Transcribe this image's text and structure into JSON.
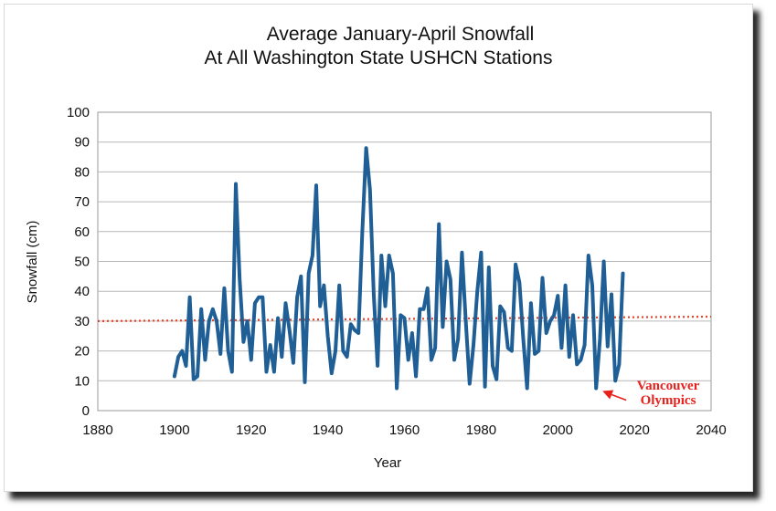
{
  "chart_data": {
    "type": "line",
    "title_line1": "Average January-April Snowfall",
    "title_line2": "At All Washington State USHCN Stations",
    "xlabel": "Year",
    "ylabel": "Snowfall (cm)",
    "xlim": [
      1880,
      2040
    ],
    "ylim": [
      0,
      100
    ],
    "xticks": [
      1880,
      1900,
      1920,
      1940,
      1960,
      1980,
      2000,
      2020,
      2040
    ],
    "yticks": [
      0,
      10,
      20,
      30,
      40,
      50,
      60,
      70,
      80,
      90,
      100
    ],
    "grid": true,
    "series_color": "#1f5f96",
    "series": [
      {
        "x": [
          1900,
          1901,
          1902,
          1903,
          1904,
          1905,
          1906,
          1907,
          1908,
          1909,
          1910,
          1911,
          1912,
          1913,
          1914,
          1915,
          1916,
          1917,
          1918,
          1919,
          1920,
          1921,
          1922,
          1923,
          1924,
          1925,
          1926,
          1927,
          1928,
          1929,
          1930,
          1931,
          1932,
          1933,
          1934,
          1935,
          1936,
          1937,
          1938,
          1939,
          1940,
          1941,
          1942,
          1943,
          1944,
          1945,
          1946,
          1947,
          1948,
          1949,
          1950,
          1951,
          1952,
          1953,
          1954,
          1955,
          1956,
          1957,
          1958,
          1959,
          1960,
          1961,
          1962,
          1963,
          1964,
          1965,
          1966,
          1967,
          1968,
          1969,
          1970,
          1971,
          1972,
          1973,
          1974,
          1975,
          1976,
          1977,
          1978,
          1979,
          1980,
          1981,
          1982,
          1983,
          1984,
          1985,
          1986,
          1987,
          1988,
          1989,
          1990,
          1991,
          1992,
          1993,
          1994,
          1995,
          1996,
          1997,
          1998,
          1999,
          2000,
          2001,
          2002,
          2003,
          2004,
          2005,
          2006,
          2007,
          2008,
          2009,
          2010,
          2011,
          2012,
          2013,
          2014,
          2015,
          2016,
          2017
        ],
        "values": [
          11.5,
          18,
          20,
          15,
          38,
          10.5,
          11.5,
          34,
          17,
          30,
          34,
          30,
          19,
          41,
          20,
          13,
          76,
          44,
          23,
          30,
          17,
          36,
          38,
          38,
          13,
          22,
          13,
          31,
          18,
          36,
          27,
          16,
          38,
          45,
          9.5,
          46,
          52,
          75.5,
          35,
          42,
          25,
          12.5,
          20,
          42,
          20,
          18,
          29,
          27,
          26,
          60,
          88,
          74,
          39,
          15,
          52,
          35,
          52,
          46,
          7.5,
          32,
          31,
          17,
          26,
          11.5,
          34,
          34,
          41,
          17,
          21,
          62.5,
          28,
          50,
          44,
          17,
          24,
          53,
          30,
          9,
          22,
          40,
          53,
          8,
          48,
          15,
          10.5,
          35,
          33,
          21,
          20,
          49,
          43,
          24,
          7.5,
          36,
          19,
          20,
          44.5,
          26,
          30,
          32,
          38.5,
          21,
          42,
          18,
          32,
          15.5,
          17,
          22,
          52,
          42,
          7.5,
          24,
          50,
          21.5,
          39,
          10,
          15.5,
          46
        ]
      }
    ],
    "reference_line": {
      "x": [
        1880,
        2040
      ],
      "y": [
        30,
        31.5
      ],
      "color": "#e2452b"
    },
    "annotation": {
      "line1": "Vancouver",
      "line2": "Olympics",
      "target": [
        2010,
        7.5
      ],
      "color": "#e8211d"
    }
  }
}
